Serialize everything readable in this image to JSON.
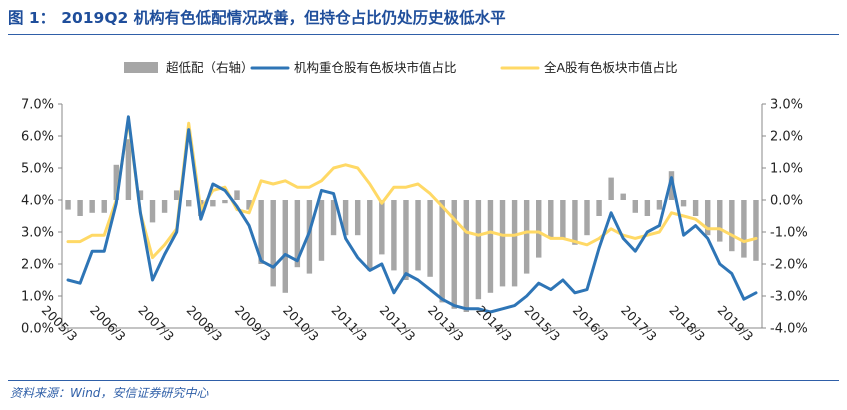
{
  "figure": {
    "label": "图 1：",
    "title": "2019Q2 机构有色低配情况改善，但持仓占比仍处历史极低水平",
    "source": "资料来源：Wind，安信证券研究中心"
  },
  "chart_data": {
    "type": "bar+line",
    "title": "2019Q2 机构有色低配情况改善，但持仓占比仍处历史极低水平",
    "x": [
      "2005/3",
      "2005/6",
      "2005/9",
      "2005/12",
      "2006/3",
      "2006/6",
      "2006/9",
      "2006/12",
      "2007/3",
      "2007/6",
      "2007/9",
      "2007/12",
      "2008/3",
      "2008/6",
      "2008/9",
      "2008/12",
      "2009/3",
      "2009/6",
      "2009/9",
      "2009/12",
      "2010/3",
      "2010/6",
      "2010/9",
      "2010/12",
      "2011/3",
      "2011/6",
      "2011/9",
      "2011/12",
      "2012/3",
      "2012/6",
      "2012/9",
      "2012/12",
      "2013/3",
      "2013/6",
      "2013/9",
      "2013/12",
      "2014/3",
      "2014/6",
      "2014/9",
      "2014/12",
      "2015/3",
      "2015/6",
      "2015/9",
      "2015/12",
      "2016/3",
      "2016/6",
      "2016/9",
      "2016/12",
      "2017/3",
      "2017/6",
      "2017/9",
      "2017/12",
      "2018/3",
      "2018/6",
      "2018/9",
      "2018/12",
      "2019/3",
      "2019/6"
    ],
    "x_tick_labels": [
      "2005/3",
      "2006/3",
      "2007/3",
      "2008/3",
      "2009/3",
      "2010/3",
      "2011/3",
      "2012/3",
      "2013/3",
      "2014/3",
      "2015/3",
      "2016/3",
      "2017/3",
      "2018/3",
      "2019/3"
    ],
    "legend_position": "top",
    "y_left": {
      "range": [
        0,
        7
      ],
      "ticks": [
        "0.0%",
        "1.0%",
        "2.0%",
        "3.0%",
        "4.0%",
        "5.0%",
        "6.0%",
        "7.0%"
      ]
    },
    "y_right": {
      "range": [
        -4,
        3
      ],
      "ticks": [
        "-4.0%",
        "-3.0%",
        "-2.0%",
        "-1.0%",
        "0.0%",
        "1.0%",
        "2.0%",
        "3.0%"
      ]
    },
    "grid": false,
    "series": [
      {
        "name": "超低配（右轴）",
        "type": "bar",
        "axis": "right",
        "color": "#a6a6a6",
        "values": [
          -0.3,
          -0.5,
          -0.4,
          -0.4,
          1.1,
          1.9,
          0.3,
          -0.7,
          -0.4,
          0.3,
          -0.2,
          -0.5,
          -0.2,
          -0.1,
          0.3,
          -0.3,
          -2.0,
          -2.7,
          -2.9,
          -2.1,
          -2.3,
          -1.9,
          -1.1,
          -1.1,
          -1.1,
          -2.2,
          -1.7,
          -2.2,
          -2.5,
          -2.2,
          -2.4,
          -3.2,
          -3.4,
          -3.5,
          -3.1,
          -2.9,
          -2.7,
          -2.7,
          -2.3,
          -1.8,
          -1.2,
          -1.2,
          -1.4,
          -1.1,
          -0.5,
          0.7,
          0.2,
          -0.4,
          -0.5,
          -0.3,
          0.9,
          -0.2,
          -0.5,
          -1.1,
          -1.3,
          -1.6,
          -1.8,
          -1.9
        ]
      },
      {
        "name": "机构重仓股有色板块市值占比",
        "type": "line",
        "axis": "left",
        "color": "#2e75b6",
        "values": [
          1.5,
          1.4,
          2.4,
          2.4,
          3.9,
          6.6,
          3.6,
          1.5,
          2.3,
          3.0,
          6.2,
          3.4,
          4.5,
          4.3,
          3.8,
          3.2,
          2.1,
          1.9,
          2.3,
          2.1,
          3.0,
          4.3,
          4.2,
          2.8,
          2.2,
          1.8,
          2.0,
          1.1,
          1.7,
          1.5,
          1.2,
          0.9,
          0.7,
          0.6,
          0.6,
          0.5,
          0.6,
          0.7,
          1.0,
          1.4,
          1.2,
          1.5,
          1.1,
          1.2,
          2.5,
          3.6,
          2.8,
          2.4,
          3.0,
          3.2,
          4.7,
          2.9,
          3.2,
          2.8,
          2.0,
          1.7,
          0.9,
          1.1
        ]
      },
      {
        "name": "全A股有色板块市值占比",
        "type": "line",
        "axis": "left",
        "color": "#ffd966",
        "values": [
          2.7,
          2.7,
          2.9,
          2.9,
          4.0,
          6.5,
          3.6,
          2.2,
          2.6,
          3.1,
          6.4,
          3.7,
          4.3,
          4.4,
          3.7,
          3.6,
          4.6,
          4.5,
          4.6,
          4.4,
          4.4,
          4.6,
          5.0,
          5.1,
          5.0,
          4.5,
          3.9,
          4.4,
          4.4,
          4.5,
          4.2,
          3.8,
          3.4,
          3.0,
          2.9,
          3.0,
          2.9,
          2.9,
          3.0,
          3.0,
          2.8,
          2.8,
          2.7,
          2.6,
          2.8,
          3.1,
          2.9,
          2.8,
          2.9,
          3.0,
          3.6,
          3.5,
          3.4,
          3.1,
          3.1,
          2.9,
          2.7,
          2.8
        ]
      }
    ]
  }
}
